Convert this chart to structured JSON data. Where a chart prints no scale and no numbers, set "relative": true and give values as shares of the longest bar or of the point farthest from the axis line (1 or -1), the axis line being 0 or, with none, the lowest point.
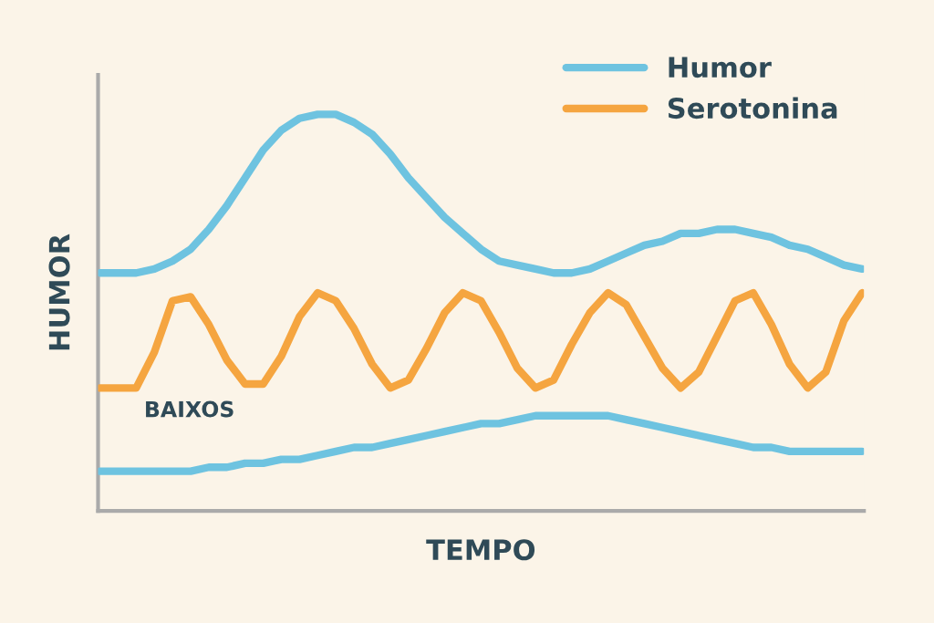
{
  "chart_data": {
    "type": "line",
    "relative": true,
    "xlabel": "TEMPO",
    "ylabel": "HUMOR",
    "categories": [
      null,
      null,
      null,
      null,
      null,
      null,
      null,
      null,
      null,
      null,
      null,
      null,
      null,
      null,
      null,
      null,
      null,
      null,
      null,
      null,
      null,
      null,
      null,
      null,
      null,
      null,
      null,
      null,
      null,
      null,
      null,
      null,
      null,
      null,
      null,
      null,
      null,
      null,
      null,
      null,
      null,
      null,
      null
    ],
    "series": [
      {
        "name": "Humor",
        "color": "#6ec3e0",
        "values": [
          0.6,
          0.6,
          0.6,
          0.61,
          0.63,
          0.66,
          0.71,
          0.77,
          0.84,
          0.91,
          0.96,
          0.99,
          1.0,
          1.0,
          0.98,
          0.95,
          0.9,
          0.84,
          0.79,
          0.74,
          0.7,
          0.66,
          0.63,
          0.62,
          0.61,
          0.6,
          0.6,
          0.61,
          0.63,
          0.65,
          0.67,
          0.68,
          0.7,
          0.7,
          0.71,
          0.71,
          0.7,
          0.69,
          0.67,
          0.66,
          0.64,
          0.62,
          0.61
        ]
      },
      {
        "name": "Serotonina",
        "color": "#f5a540",
        "values": [
          0.31,
          0.31,
          0.31,
          0.4,
          0.53,
          0.54,
          0.47,
          0.38,
          0.32,
          0.32,
          0.39,
          0.49,
          0.55,
          0.53,
          0.46,
          0.37,
          0.31,
          0.33,
          0.41,
          0.5,
          0.55,
          0.53,
          0.45,
          0.36,
          0.31,
          0.33,
          0.42,
          0.5,
          0.55,
          0.52,
          0.44,
          0.36,
          0.31,
          0.35,
          0.44,
          0.53,
          0.55,
          0.47,
          0.37,
          0.31,
          0.35,
          0.48,
          0.55
        ]
      },
      {
        "color": "#6ec3e0",
        "values": [
          0.1,
          0.1,
          0.1,
          0.1,
          0.1,
          0.1,
          0.11,
          0.11,
          0.12,
          0.12,
          0.13,
          0.13,
          0.14,
          0.15,
          0.16,
          0.16,
          0.17,
          0.18,
          0.19,
          0.2,
          0.21,
          0.22,
          0.22,
          0.23,
          0.24,
          0.24,
          0.24,
          0.24,
          0.24,
          0.23,
          0.22,
          0.21,
          0.2,
          0.19,
          0.18,
          0.17,
          0.16,
          0.16,
          0.15,
          0.15,
          0.15,
          0.15,
          0.15
        ]
      }
    ],
    "annotations": [
      "BAIXOS"
    ],
    "legend": "top right",
    "grid": false,
    "marker": "none",
    "line_style": "solid"
  }
}
